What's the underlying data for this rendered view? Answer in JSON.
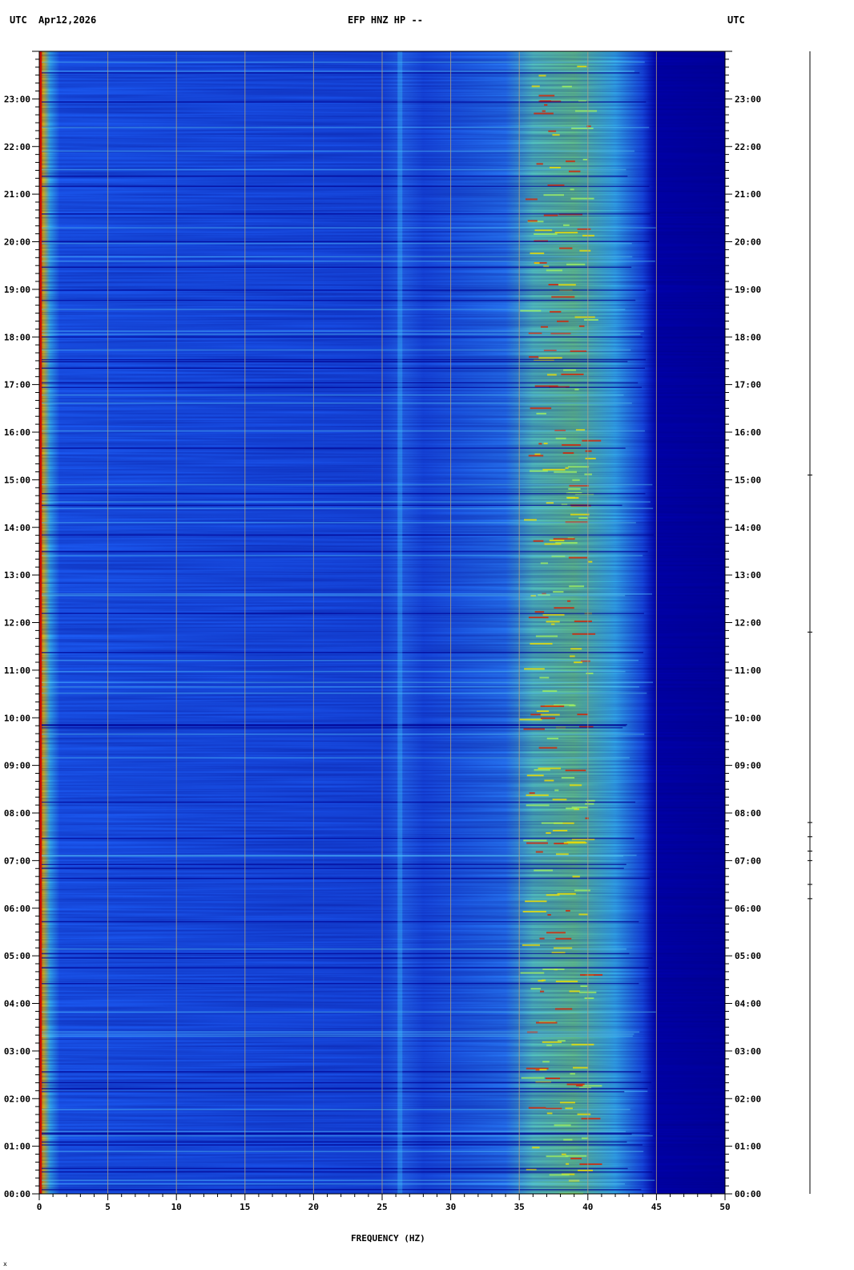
{
  "header": {
    "left_tz": "UTC",
    "date": "Apr12,2026",
    "station": "EFP HNZ HP --",
    "right_tz": "UTC"
  },
  "chart_data": {
    "type": "heatmap",
    "title": "EFP HNZ HP --",
    "xlabel": "FREQUENCY (HZ)",
    "ylabel": "",
    "xlim": [
      0,
      50
    ],
    "x_ticks": [
      0,
      5,
      10,
      15,
      20,
      25,
      30,
      35,
      40,
      45,
      50
    ],
    "x_tick_labels": [
      "0",
      "5",
      "10",
      "15",
      "20",
      "25",
      "30",
      "35",
      "40",
      "45",
      "50"
    ],
    "y_time_range": [
      "00:00",
      "24:00"
    ],
    "y_ticks_hours": [
      0,
      1,
      2,
      3,
      4,
      5,
      6,
      7,
      8,
      9,
      10,
      11,
      12,
      13,
      14,
      15,
      16,
      17,
      18,
      19,
      20,
      21,
      22,
      23
    ],
    "y_tick_labels": [
      "00:00",
      "01:00",
      "02:00",
      "03:00",
      "04:00",
      "05:00",
      "06:00",
      "07:00",
      "08:00",
      "09:00",
      "10:00",
      "11:00",
      "12:00",
      "13:00",
      "14:00",
      "15:00",
      "16:00",
      "17:00",
      "18:00",
      "19:00",
      "20:00",
      "21:00",
      "22:00",
      "23:00"
    ],
    "grid": true,
    "colors": {
      "low": "#0000a0",
      "mid": "#1e64ff",
      "high": "#3cc8ff",
      "peak": "#e0e000",
      "max": "#d01000"
    },
    "features": [
      {
        "kind": "band",
        "x_range": [
          35,
          42
        ],
        "intensity": "high"
      },
      {
        "kind": "line",
        "x": 26.3,
        "intensity": "mid-high"
      },
      {
        "kind": "edge",
        "x": 0.3,
        "intensity": "max"
      },
      {
        "kind": "rolloff",
        "x_range": [
          42,
          45
        ]
      }
    ],
    "bottom_marker": "x"
  }
}
